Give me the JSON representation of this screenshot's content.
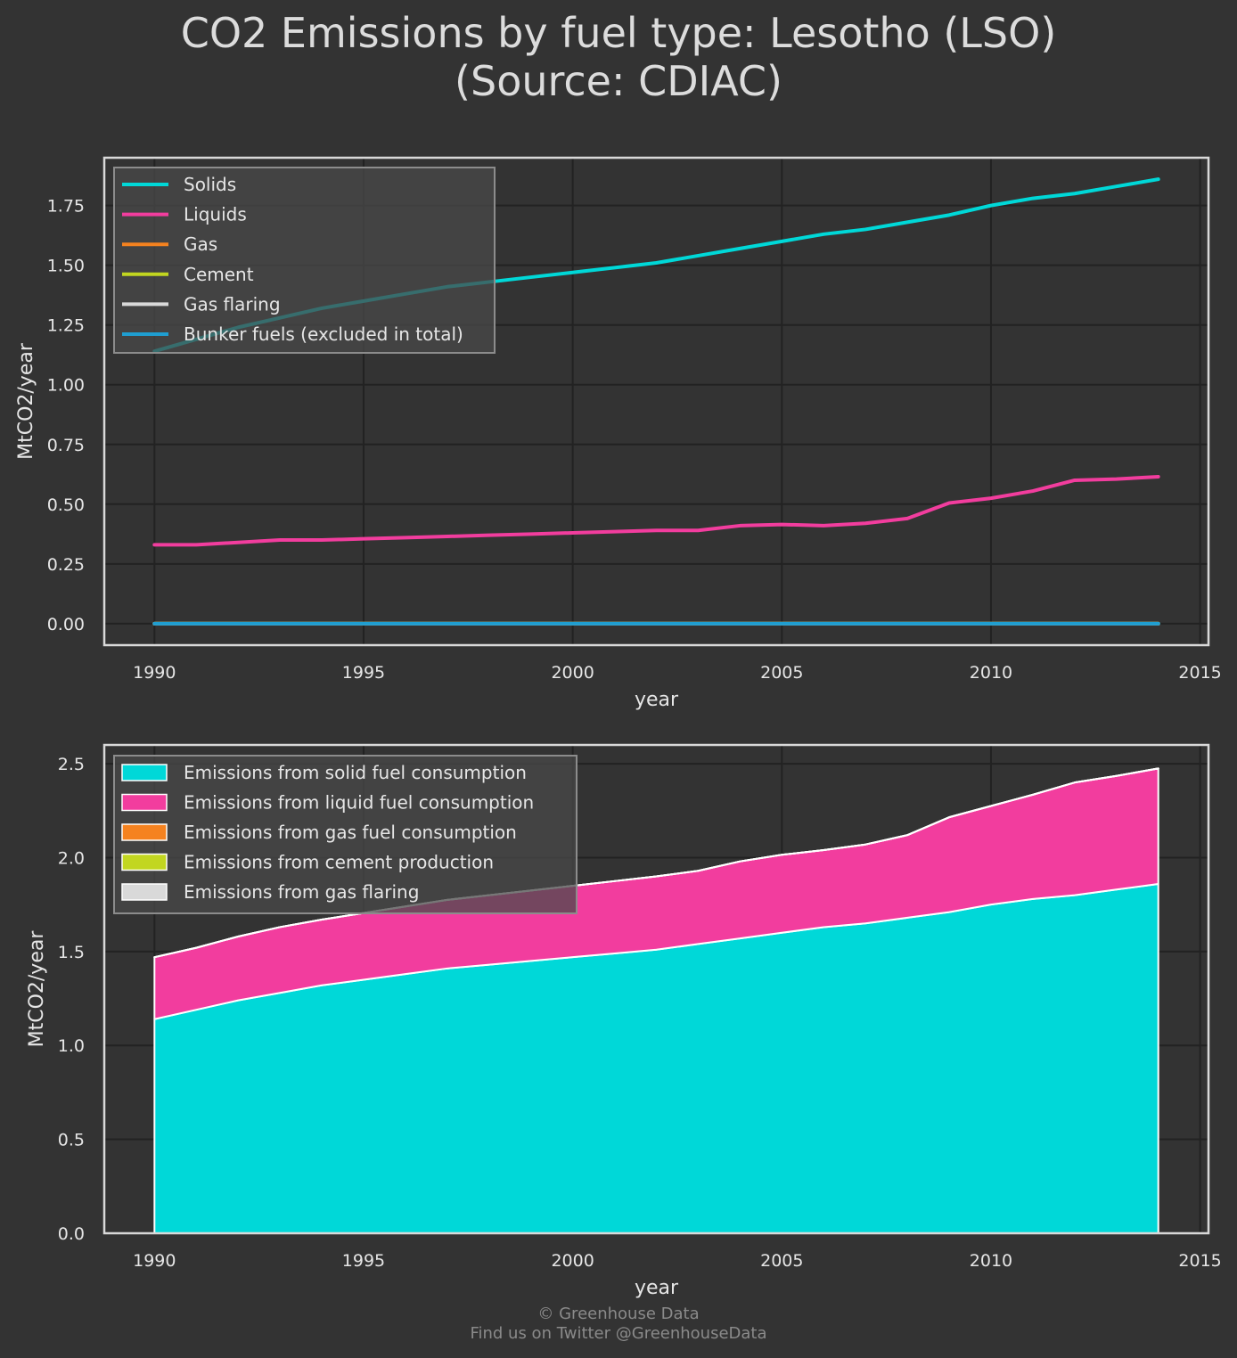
{
  "title": {
    "line1": "CO2 Emissions by fuel type: Lesotho (LSO)",
    "line2": "(Source: CDIAC)"
  },
  "footer": {
    "line1": "© Greenhouse Data",
    "line2": "Find us on Twitter @GreenhouseData"
  },
  "colors": {
    "background": "#333333",
    "grid": "#222222",
    "frame": "#d9d9d9",
    "solids": "#00d8d8",
    "liquids": "#f23d9e",
    "gas": "#f5821f",
    "cement": "#c2d620",
    "flaring": "#d9d9d9",
    "bunker": "#1f9ed1"
  },
  "chart_data": [
    {
      "type": "line",
      "xlabel": "year",
      "ylabel": "MtCO2/year",
      "xlim": [
        1988.8,
        2015.2
      ],
      "ylim": [
        -0.09,
        1.95
      ],
      "xticks": [
        "1990",
        "1995",
        "2000",
        "2005",
        "2010",
        "2015"
      ],
      "yticks": [
        "0.00",
        "0.25",
        "0.50",
        "0.75",
        "1.00",
        "1.25",
        "1.50",
        "1.75"
      ],
      "grid": true,
      "legend": "top-left",
      "x": [
        1990,
        1991,
        1992,
        1993,
        1994,
        1995,
        1996,
        1997,
        1998,
        1999,
        2000,
        2001,
        2002,
        2003,
        2004,
        2005,
        2006,
        2007,
        2008,
        2009,
        2010,
        2011,
        2012,
        2013,
        2014
      ],
      "series": [
        {
          "name": "Solids",
          "color_key": "solids",
          "values": [
            1.14,
            1.19,
            1.24,
            1.28,
            1.32,
            1.35,
            1.38,
            1.41,
            1.43,
            1.45,
            1.47,
            1.49,
            1.51,
            1.54,
            1.57,
            1.6,
            1.63,
            1.65,
            1.68,
            1.71,
            1.75,
            1.78,
            1.8,
            1.83,
            1.86
          ]
        },
        {
          "name": "Liquids",
          "color_key": "liquids",
          "values": [
            0.33,
            0.33,
            0.34,
            0.35,
            0.35,
            0.355,
            0.36,
            0.365,
            0.37,
            0.375,
            0.38,
            0.385,
            0.39,
            0.39,
            0.41,
            0.415,
            0.41,
            0.42,
            0.44,
            0.505,
            0.525,
            0.555,
            0.6,
            0.605,
            0.615
          ]
        },
        {
          "name": "Gas",
          "color_key": "gas",
          "values": [
            0,
            0,
            0,
            0,
            0,
            0,
            0,
            0,
            0,
            0,
            0,
            0,
            0,
            0,
            0,
            0,
            0,
            0,
            0,
            0,
            0,
            0,
            0,
            0,
            0
          ]
        },
        {
          "name": "Cement",
          "color_key": "cement",
          "values": [
            0,
            0,
            0,
            0,
            0,
            0,
            0,
            0,
            0,
            0,
            0,
            0,
            0,
            0,
            0,
            0,
            0,
            0,
            0,
            0,
            0,
            0,
            0,
            0,
            0
          ]
        },
        {
          "name": "Gas flaring",
          "color_key": "flaring",
          "values": [
            0,
            0,
            0,
            0,
            0,
            0,
            0,
            0,
            0,
            0,
            0,
            0,
            0,
            0,
            0,
            0,
            0,
            0,
            0,
            0,
            0,
            0,
            0,
            0,
            0
          ]
        },
        {
          "name": "Bunker fuels (excluded in total)",
          "color_key": "bunker",
          "values": [
            0,
            0,
            0,
            0,
            0,
            0,
            0,
            0,
            0,
            0,
            0,
            0,
            0,
            0,
            0,
            0,
            0,
            0,
            0,
            0,
            0,
            0,
            0,
            0,
            0
          ]
        }
      ]
    },
    {
      "type": "area",
      "stacked": true,
      "xlabel": "year",
      "ylabel": "MtCO2/year",
      "xlim": [
        1988.8,
        2015.2
      ],
      "ylim": [
        0,
        2.6
      ],
      "xticks": [
        "1990",
        "1995",
        "2000",
        "2005",
        "2010",
        "2015"
      ],
      "yticks": [
        "0.0",
        "0.5",
        "1.0",
        "1.5",
        "2.0",
        "2.5"
      ],
      "grid": true,
      "legend": "top-left",
      "x": [
        1990,
        1991,
        1992,
        1993,
        1994,
        1995,
        1996,
        1997,
        1998,
        1999,
        2000,
        2001,
        2002,
        2003,
        2004,
        2005,
        2006,
        2007,
        2008,
        2009,
        2010,
        2011,
        2012,
        2013,
        2014
      ],
      "series": [
        {
          "name": "Emissions from solid fuel consumption",
          "color_key": "solids",
          "values": [
            1.14,
            1.19,
            1.24,
            1.28,
            1.32,
            1.35,
            1.38,
            1.41,
            1.43,
            1.45,
            1.47,
            1.49,
            1.51,
            1.54,
            1.57,
            1.6,
            1.63,
            1.65,
            1.68,
            1.71,
            1.75,
            1.78,
            1.8,
            1.83,
            1.86
          ]
        },
        {
          "name": "Emissions from liquid fuel consumption",
          "color_key": "liquids",
          "values": [
            0.33,
            0.33,
            0.34,
            0.35,
            0.35,
            0.355,
            0.36,
            0.365,
            0.37,
            0.375,
            0.38,
            0.385,
            0.39,
            0.39,
            0.41,
            0.415,
            0.41,
            0.42,
            0.44,
            0.505,
            0.525,
            0.555,
            0.6,
            0.605,
            0.615
          ]
        },
        {
          "name": "Emissions from gas fuel consumption",
          "color_key": "gas",
          "values": [
            0,
            0,
            0,
            0,
            0,
            0,
            0,
            0,
            0,
            0,
            0,
            0,
            0,
            0,
            0,
            0,
            0,
            0,
            0,
            0,
            0,
            0,
            0,
            0,
            0
          ]
        },
        {
          "name": "Emissions from cement production",
          "color_key": "cement",
          "values": [
            0,
            0,
            0,
            0,
            0,
            0,
            0,
            0,
            0,
            0,
            0,
            0,
            0,
            0,
            0,
            0,
            0,
            0,
            0,
            0,
            0,
            0,
            0,
            0,
            0
          ]
        },
        {
          "name": "Emissions from gas flaring",
          "color_key": "flaring",
          "values": [
            0,
            0,
            0,
            0,
            0,
            0,
            0,
            0,
            0,
            0,
            0,
            0,
            0,
            0,
            0,
            0,
            0,
            0,
            0,
            0,
            0,
            0,
            0,
            0,
            0
          ]
        }
      ]
    }
  ]
}
